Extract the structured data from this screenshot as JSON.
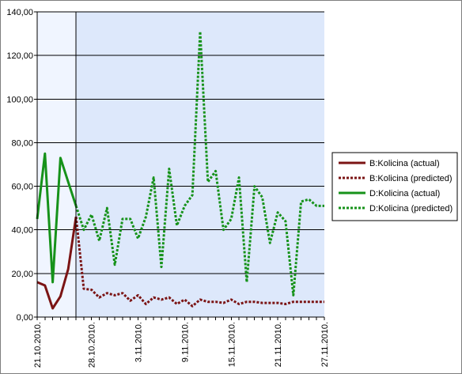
{
  "chart_data": {
    "type": "line",
    "title": "",
    "xlabel": "",
    "ylabel": "",
    "x_tick_labels": [
      "21.10.2010.",
      "28.10.2010.",
      "3.11.2010.",
      "9.11.2010.",
      "15.11.2010.",
      "21.11.2010.",
      "27.11.2010."
    ],
    "x_tick_days": [
      0,
      7,
      13,
      19,
      25,
      31,
      37
    ],
    "x_range_days": [
      0,
      37
    ],
    "actual_range_days": [
      0,
      5
    ],
    "ylim": [
      0,
      140
    ],
    "y_ticks": [
      0,
      20,
      40,
      60,
      80,
      100,
      120,
      140
    ],
    "y_tick_labels": [
      "0,00",
      "20,00",
      "40,00",
      "60,00",
      "80,00",
      "100,00",
      "120,00",
      "140,00"
    ],
    "grid": "horizontal major",
    "legend_position": "right",
    "colors": {
      "actual_shade": "#f0f5ff",
      "predicted_shade": "#dde8fb",
      "b_series": "#7b1414",
      "d_series": "#16921a"
    },
    "series": [
      {
        "name": "B:Kolicina (actual)",
        "style": "solid",
        "color": "#7b1414",
        "x": [
          0,
          1,
          2,
          3,
          4,
          5
        ],
        "y": [
          16,
          14.5,
          4,
          9.5,
          22,
          46
        ]
      },
      {
        "name": "B:Kolicina (predicted)",
        "style": "dotted",
        "color": "#7b1414",
        "x": [
          5,
          6,
          7,
          8,
          9,
          10,
          11,
          12,
          13,
          14,
          15,
          16,
          17,
          18,
          19,
          20,
          21,
          22,
          23,
          24,
          25,
          26,
          27,
          28,
          29,
          30,
          31,
          32,
          33,
          34,
          35,
          36,
          37
        ],
        "y": [
          46,
          13,
          12.5,
          9,
          11,
          10,
          11,
          7.5,
          10,
          6,
          9,
          8,
          9,
          6,
          8,
          5,
          8,
          7,
          7,
          6.5,
          8,
          6,
          7,
          7,
          6.5,
          6.5,
          6.5,
          6,
          7,
          7,
          7,
          7,
          7
        ]
      },
      {
        "name": "D:Kolicina (actual)",
        "style": "solid",
        "color": "#16921a",
        "x": [
          0,
          1,
          2,
          3,
          4,
          5
        ],
        "y": [
          45,
          75,
          16,
          73,
          62,
          51
        ]
      },
      {
        "name": "D:Kolicina (predicted)",
        "style": "dotted",
        "color": "#16921a",
        "x": [
          5,
          6,
          7,
          8,
          9,
          10,
          11,
          12,
          13,
          14,
          15,
          16,
          17,
          18,
          19,
          20,
          21,
          22,
          23,
          24,
          25,
          26,
          27,
          28,
          29,
          30,
          31,
          32,
          33,
          34,
          35,
          36,
          37
        ],
        "y": [
          51,
          40,
          47,
          35,
          50,
          24,
          45,
          45,
          36,
          46,
          64,
          23,
          68,
          42,
          51,
          56,
          131,
          62,
          67,
          40,
          45,
          64,
          16,
          60,
          55,
          34,
          48,
          44,
          10,
          53,
          54,
          51,
          51
        ]
      }
    ]
  }
}
